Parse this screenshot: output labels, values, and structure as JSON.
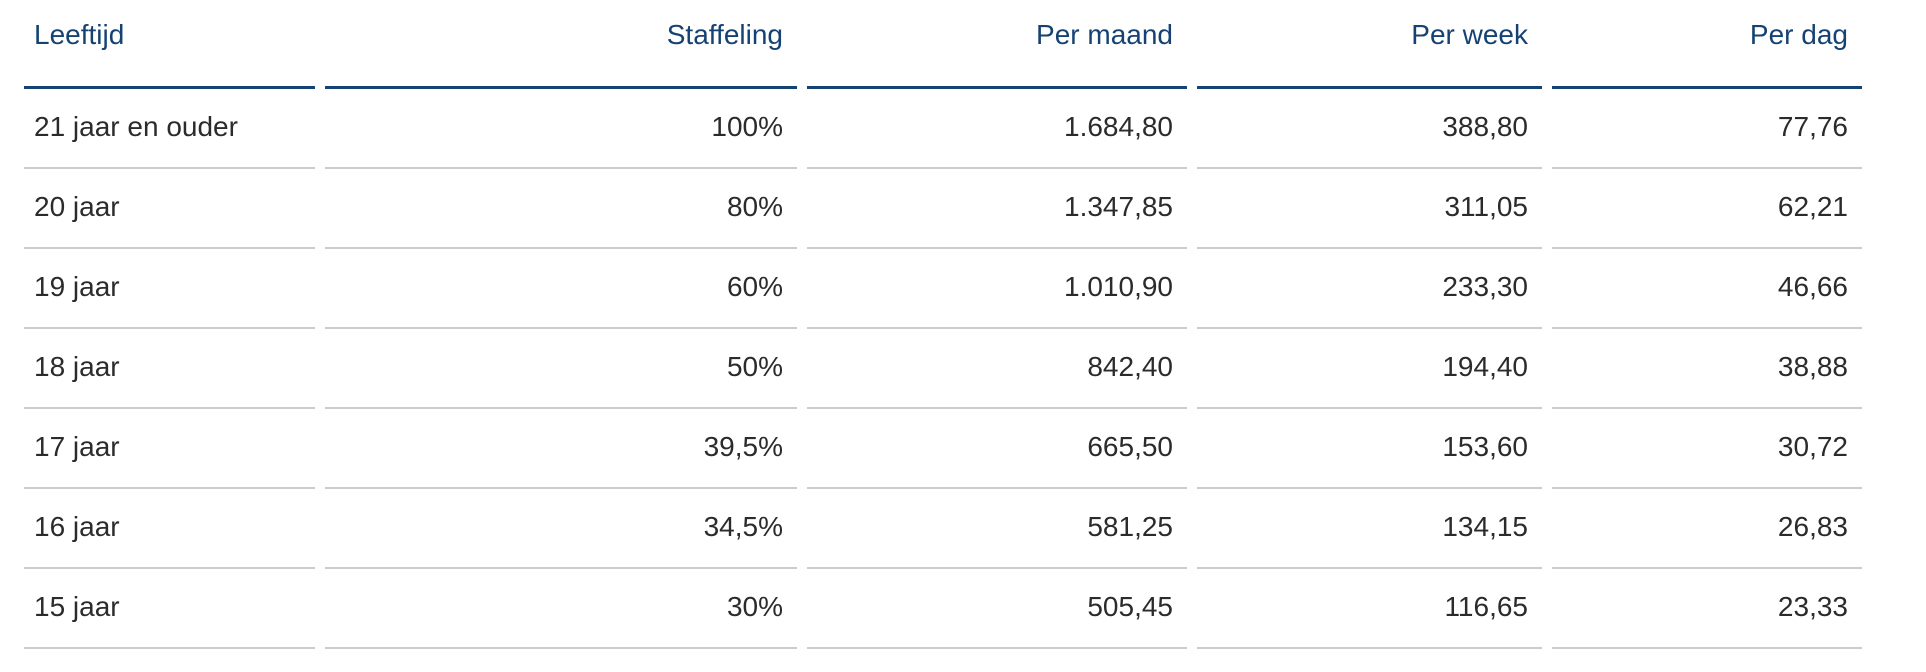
{
  "colors": {
    "header_blue": "#154273",
    "row_separator": "#cccccc",
    "body_text": "#2b2b2b",
    "background": "#ffffff"
  },
  "table": {
    "name": "minimumloon-staffel-tabel",
    "columns": [
      {
        "key": "leeftijd",
        "label": "Leeftijd",
        "align": "left"
      },
      {
        "key": "staffeling",
        "label": "Staffeling",
        "align": "right"
      },
      {
        "key": "per_maand",
        "label": "Per maand",
        "align": "right"
      },
      {
        "key": "per_week",
        "label": "Per week",
        "align": "right"
      },
      {
        "key": "per_dag",
        "label": "Per dag",
        "align": "right"
      }
    ],
    "rows": [
      {
        "leeftijd": "21 jaar en ouder",
        "staffeling": "100%",
        "per_maand": "1.684,80",
        "per_week": "388,80",
        "per_dag": "77,76"
      },
      {
        "leeftijd": "20 jaar",
        "staffeling": "80%",
        "per_maand": "1.347,85",
        "per_week": "311,05",
        "per_dag": "62,21"
      },
      {
        "leeftijd": "19 jaar",
        "staffeling": "60%",
        "per_maand": "1.010,90",
        "per_week": "233,30",
        "per_dag": "46,66"
      },
      {
        "leeftijd": "18 jaar",
        "staffeling": "50%",
        "per_maand": "842,40",
        "per_week": "194,40",
        "per_dag": "38,88"
      },
      {
        "leeftijd": "17 jaar",
        "staffeling": "39,5%",
        "per_maand": "665,50",
        "per_week": "153,60",
        "per_dag": "30,72"
      },
      {
        "leeftijd": "16 jaar",
        "staffeling": "34,5%",
        "per_maand": "581,25",
        "per_week": "134,15",
        "per_dag": "26,83"
      },
      {
        "leeftijd": "15 jaar",
        "staffeling": "30%",
        "per_maand": "505,45",
        "per_week": "116,65",
        "per_dag": "23,33"
      }
    ]
  }
}
